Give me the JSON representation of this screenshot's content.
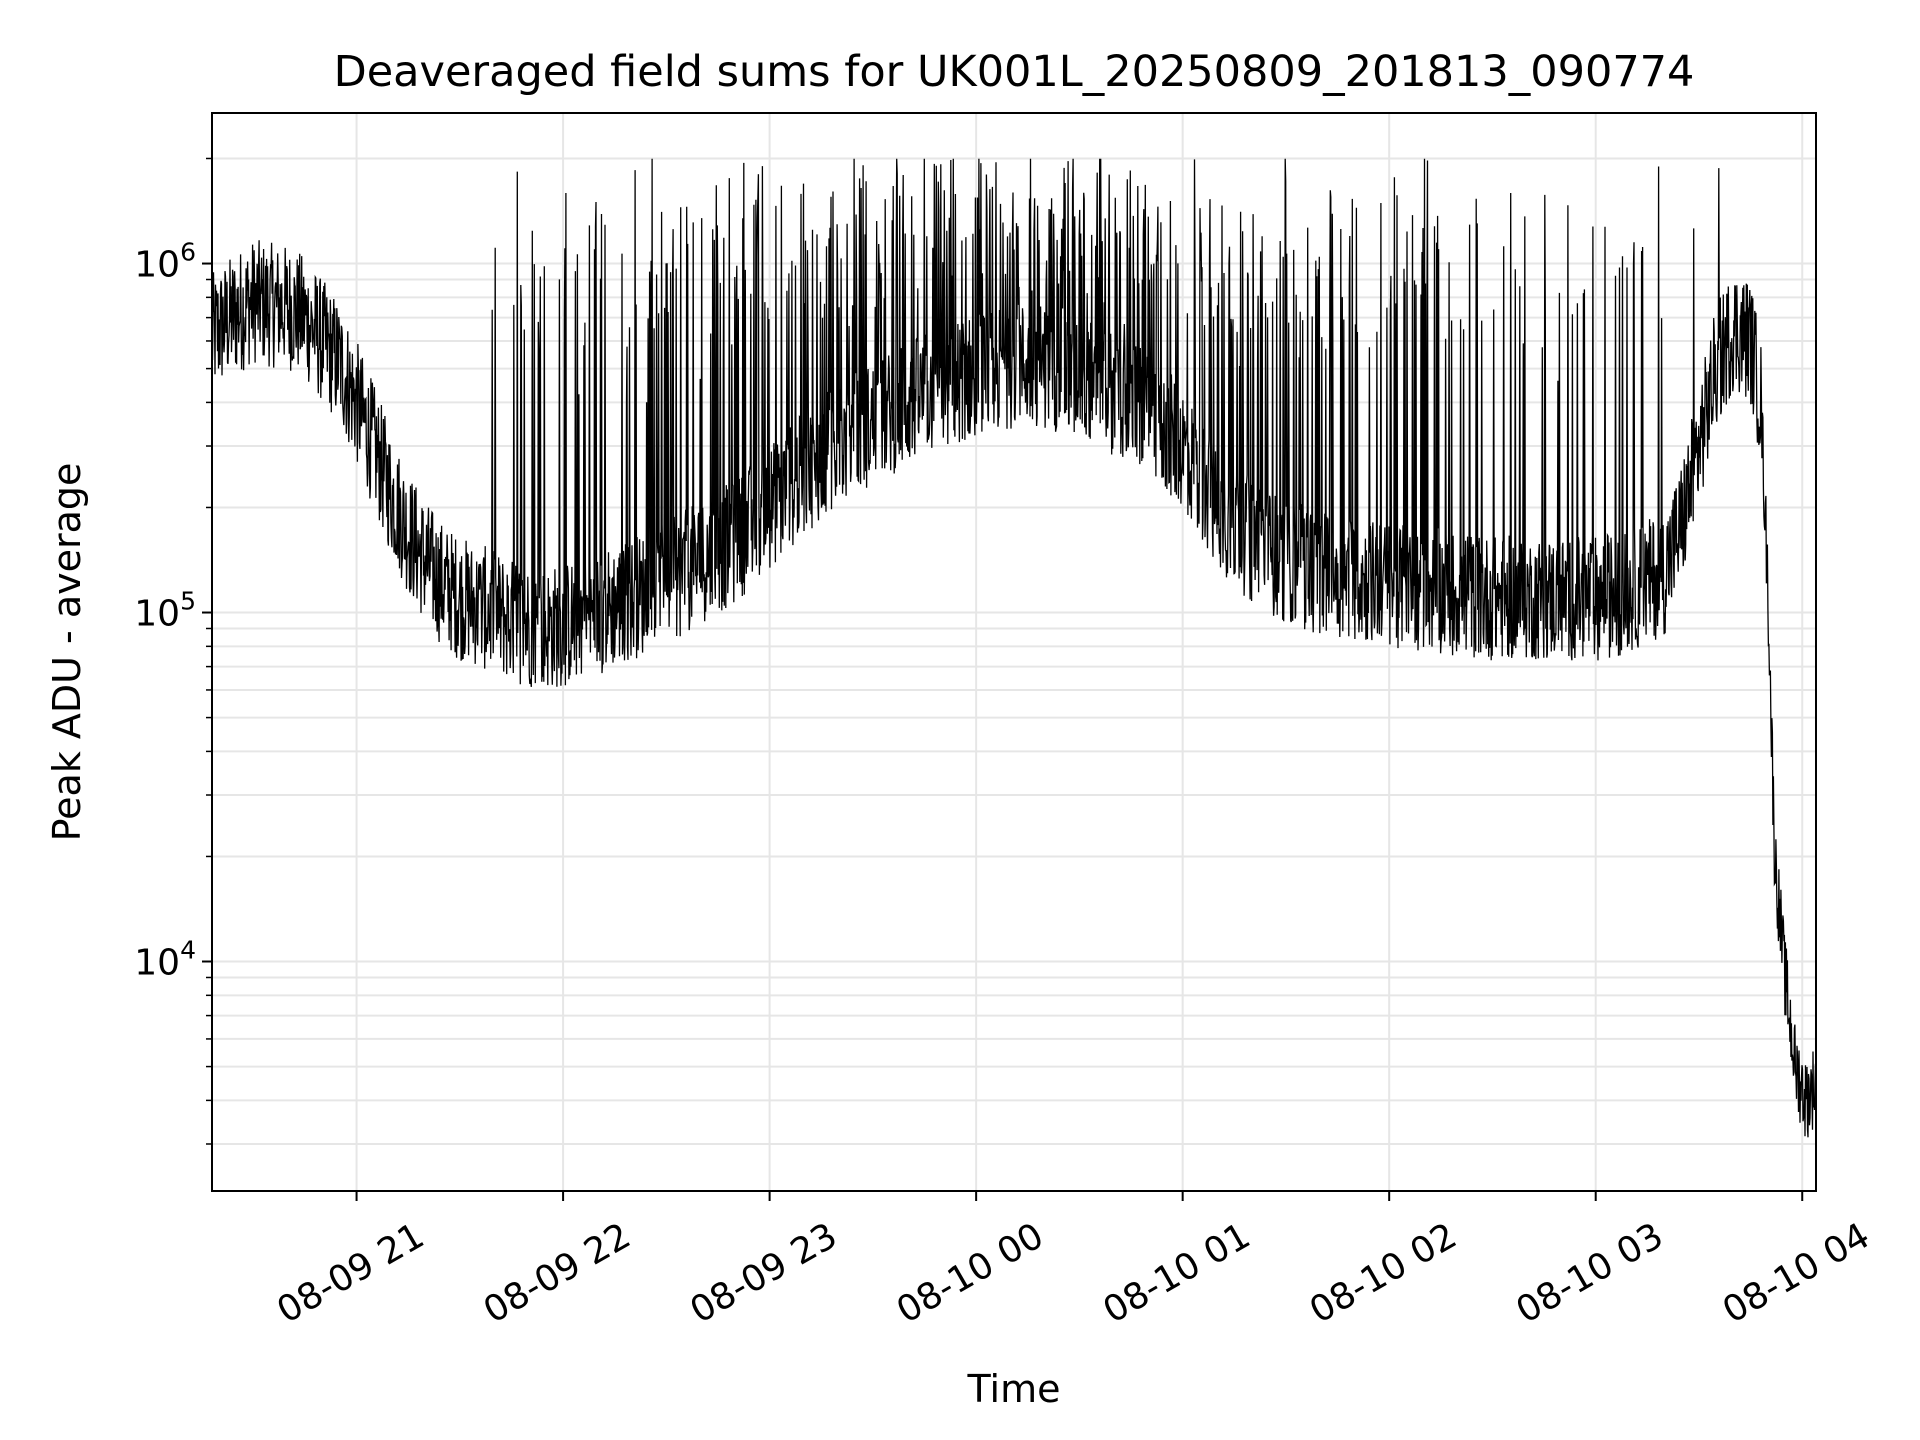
{
  "chart_data": {
    "type": "line",
    "title": "Deaveraged field sums for UK001L_20250809_201813_090774",
    "xlabel": "Time",
    "ylabel": "Peak ADU - average",
    "yscale": "log",
    "ylim": [
      2200,
      2700000
    ],
    "xlim": [
      "2025-08-09 20:18",
      "2025-08-10 04:04"
    ],
    "grid": true,
    "line_color": "#000000",
    "x_ticks": [
      "08-09 21",
      "08-09 22",
      "08-09 23",
      "08-10 00",
      "08-10 01",
      "08-10 02",
      "08-10 03",
      "08-10 04"
    ],
    "y_ticks": [
      {
        "base": "10",
        "exp": "4",
        "value": 10000
      },
      {
        "base": "10",
        "exp": "5",
        "value": 100000
      },
      {
        "base": "10",
        "exp": "6",
        "value": 1000000
      }
    ],
    "series": [
      {
        "x": [
          "2025-08-09 20:18",
          "2025-08-09 20:25",
          "2025-08-09 20:30",
          "2025-08-09 20:35",
          "2025-08-09 20:40",
          "2025-08-09 20:45",
          "2025-08-09 20:50",
          "2025-08-09 20:55",
          "2025-08-09 21:00",
          "2025-08-09 21:05",
          "2025-08-09 21:10",
          "2025-08-09 21:15",
          "2025-08-09 21:20",
          "2025-08-09 21:25",
          "2025-08-09 21:30",
          "2025-08-09 21:35",
          "2025-08-09 21:40",
          "2025-08-09 21:45",
          "2025-08-09 21:50",
          "2025-08-09 21:55",
          "2025-08-09 22:00",
          "2025-08-09 22:10",
          "2025-08-09 22:20",
          "2025-08-09 22:30",
          "2025-08-09 22:40",
          "2025-08-09 22:50",
          "2025-08-09 23:00",
          "2025-08-09 23:15",
          "2025-08-09 23:30",
          "2025-08-09 23:45",
          "2025-08-10 00:00",
          "2025-08-10 00:15",
          "2025-08-10 00:30",
          "2025-08-10 00:45",
          "2025-08-10 01:00",
          "2025-08-10 01:10",
          "2025-08-10 01:20",
          "2025-08-10 01:30",
          "2025-08-10 01:40",
          "2025-08-10 01:50",
          "2025-08-10 02:00",
          "2025-08-10 02:15",
          "2025-08-10 02:30",
          "2025-08-10 02:45",
          "2025-08-10 03:00",
          "2025-08-10 03:10",
          "2025-08-10 03:20",
          "2025-08-10 03:25",
          "2025-08-10 03:30",
          "2025-08-10 03:35",
          "2025-08-10 03:40",
          "2025-08-10 03:45",
          "2025-08-10 03:48",
          "2025-08-10 03:50",
          "2025-08-10 03:52",
          "2025-08-10 03:55",
          "2025-08-10 03:58",
          "2025-08-10 04:01",
          "2025-08-10 04:04"
        ],
        "y": [
          620000,
          720000,
          780000,
          760000,
          750000,
          700000,
          600000,
          520000,
          400000,
          300000,
          220000,
          170000,
          140000,
          120000,
          110000,
          105000,
          100000,
          95000,
          92000,
          90000,
          92000,
          100000,
          110000,
          120000,
          140000,
          160000,
          200000,
          280000,
          350000,
          420000,
          480000,
          520000,
          480000,
          400000,
          300000,
          200000,
          160000,
          140000,
          130000,
          125000,
          120000,
          115000,
          110000,
          110000,
          110000,
          115000,
          130000,
          180000,
          300000,
          500000,
          650000,
          600000,
          400000,
          120000,
          20000,
          9000,
          5000,
          4000,
          4500
        ]
      }
    ]
  }
}
